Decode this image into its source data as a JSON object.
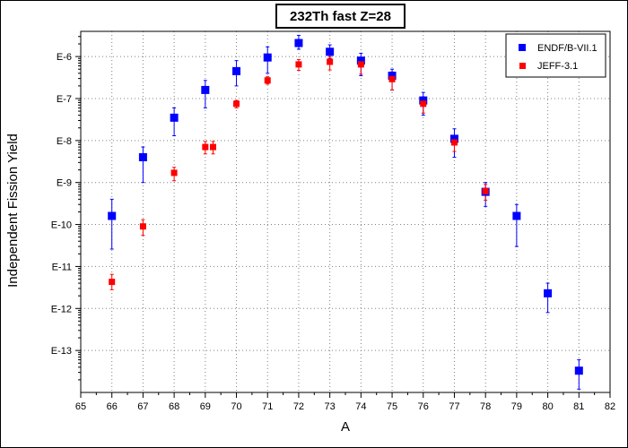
{
  "chart_data": {
    "type": "scatter",
    "title": "232Th fast Z=28",
    "xlabel": "A",
    "ylabel": "Independent Fission Yield",
    "xlim": [
      65,
      82
    ],
    "ylim_log10": [
      -14,
      -5.4
    ],
    "y_scale": "log",
    "grid": true,
    "legend_position": "top-right",
    "x_ticks": [
      65,
      66,
      67,
      68,
      69,
      70,
      71,
      72,
      73,
      74,
      75,
      76,
      77,
      78,
      79,
      80,
      81,
      82
    ],
    "x_tick_labels": [
      "65",
      "66",
      "67",
      "68",
      "69",
      "70",
      "71",
      "72",
      "73",
      "74",
      "75",
      "76",
      "77",
      "78",
      "79",
      "80",
      "81",
      "82"
    ],
    "y_ticks": [
      1e-06,
      1e-07,
      1e-08,
      1e-09,
      1e-10,
      1e-11,
      1e-12,
      1e-13
    ],
    "y_tick_labels": [
      "E-6",
      "E-7",
      "E-8",
      "E-9",
      "E-10",
      "E-11",
      "E-12",
      "E-13"
    ],
    "series": [
      {
        "name": "ENDF/B-VII.1",
        "color": "#0000ff",
        "marker": "square",
        "points": [
          {
            "x": 66,
            "y": 1.6e-10,
            "lo": 2.6e-11,
            "hi": 4e-10
          },
          {
            "x": 67,
            "y": 4e-09,
            "lo": 1e-09,
            "hi": 7e-09
          },
          {
            "x": 68,
            "y": 3.5e-08,
            "lo": 1.3e-08,
            "hi": 6e-08
          },
          {
            "x": 69,
            "y": 1.6e-07,
            "lo": 6e-08,
            "hi": 2.7e-07
          },
          {
            "x": 70,
            "y": 4.5e-07,
            "lo": 2e-07,
            "hi": 8e-07
          },
          {
            "x": 71,
            "y": 9.5e-07,
            "lo": 4e-07,
            "hi": 1.7e-06
          },
          {
            "x": 72,
            "y": 2.1e-06,
            "lo": 1.5e-06,
            "hi": 3.2e-06
          },
          {
            "x": 73,
            "y": 1.3e-06,
            "lo": 9e-07,
            "hi": 1.9e-06
          },
          {
            "x": 74,
            "y": 8e-07,
            "lo": 3.5e-07,
            "hi": 1.2e-06
          },
          {
            "x": 75,
            "y": 3.5e-07,
            "lo": 1.6e-07,
            "hi": 5e-07
          },
          {
            "x": 76,
            "y": 9e-08,
            "lo": 4e-08,
            "hi": 1.4e-07
          },
          {
            "x": 77,
            "y": 1.1e-08,
            "lo": 4e-09,
            "hi": 1.9e-08
          },
          {
            "x": 78,
            "y": 6e-10,
            "lo": 2.7e-10,
            "hi": 1e-09
          },
          {
            "x": 79,
            "y": 1.6e-10,
            "lo": 3e-11,
            "hi": 3e-10
          },
          {
            "x": 80,
            "y": 2.3e-12,
            "lo": 8e-13,
            "hi": 4e-12
          },
          {
            "x": 81,
            "y": 3.3e-14,
            "lo": 1.2e-14,
            "hi": 6e-14
          }
        ]
      },
      {
        "name": "JEFF-3.1",
        "color": "#ff0000",
        "marker": "square",
        "points": [
          {
            "x": 66,
            "y": 4.3e-12,
            "lo": 2.8e-12,
            "hi": 6.5e-12
          },
          {
            "x": 67,
            "y": 9e-11,
            "lo": 5.5e-11,
            "hi": 1.3e-10
          },
          {
            "x": 68,
            "y": 1.7e-09,
            "lo": 1.1e-09,
            "hi": 2.3e-09
          },
          {
            "x": 69,
            "y": 7e-09,
            "lo": 4.8e-09,
            "hi": 9.5e-09
          },
          {
            "x": 69.25,
            "y": 7e-09,
            "lo": 4.8e-09,
            "hi": 9.5e-09
          },
          {
            "x": 70,
            "y": 7.5e-08,
            "lo": 6e-08,
            "hi": 9e-08
          },
          {
            "x": 71,
            "y": 2.7e-07,
            "lo": 2.2e-07,
            "hi": 3.3e-07
          },
          {
            "x": 72,
            "y": 6.5e-07,
            "lo": 4.7e-07,
            "hi": 8.5e-07
          },
          {
            "x": 73,
            "y": 7.5e-07,
            "lo": 4.8e-07,
            "hi": 1e-06
          },
          {
            "x": 74,
            "y": 6.5e-07,
            "lo": 3.8e-07,
            "hi": 9.5e-07
          },
          {
            "x": 75,
            "y": 2.9e-07,
            "lo": 1.6e-07,
            "hi": 4.3e-07
          },
          {
            "x": 76,
            "y": 7.5e-08,
            "lo": 4.5e-08,
            "hi": 1.1e-07
          },
          {
            "x": 77,
            "y": 9e-09,
            "lo": 5.5e-09,
            "hi": 1.3e-08
          },
          {
            "x": 78,
            "y": 6.2e-10,
            "lo": 3.8e-10,
            "hi": 9e-10
          }
        ]
      }
    ]
  }
}
